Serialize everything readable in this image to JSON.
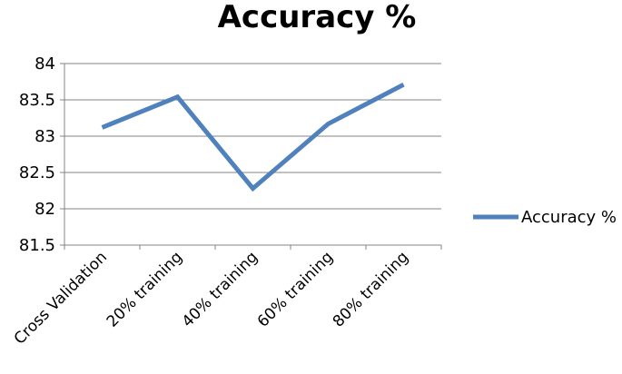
{
  "chart_data": {
    "type": "line",
    "title": "Accuracy %",
    "xlabel": "",
    "ylabel": "",
    "categories": [
      "Cross Validation",
      "20% training",
      "40% training",
      "60% training",
      "80% training"
    ],
    "series": [
      {
        "name": "Accuracy %",
        "color": "#4f81bd",
        "values": [
          83.12,
          83.54,
          82.28,
          83.17,
          83.71
        ]
      }
    ],
    "ylim": [
      81.5,
      84
    ],
    "yticks": [
      "81.5",
      "82",
      "82.5",
      "83",
      "83.5",
      "84"
    ],
    "grid": true,
    "legend": "right"
  }
}
